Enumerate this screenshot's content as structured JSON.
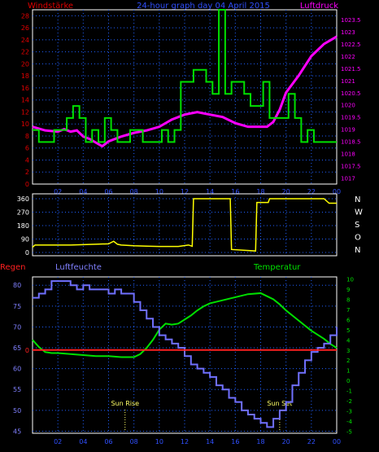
{
  "colors": {
    "background": "#000000",
    "wind": "#00e000",
    "pressure": "#ff00ff",
    "direction": "#ffff00",
    "rain": "#ff2020",
    "humidity": "#7070ff",
    "temperature": "#00e000",
    "frame": "#ffffff",
    "grid": "#2060ff"
  },
  "chart_data": [
    {
      "type": "line",
      "title": "24-hour graph day  04 April 2015",
      "left_axis_label": "Windstärke",
      "right_axis_label": "Luftdruck",
      "x_ticks": [
        "02",
        "04",
        "06",
        "08",
        "10",
        "12",
        "14",
        "16",
        "18",
        "20",
        "22",
        "00"
      ],
      "hours": [
        0,
        24
      ],
      "y_left_ticks": [
        "0",
        "2",
        "4",
        "6",
        "8",
        "10",
        "12",
        "14",
        "16",
        "18",
        "20",
        "22",
        "24",
        "26",
        "28"
      ],
      "y_left_range": [
        0,
        29
      ],
      "y_right_ticks": [
        "1017",
        "1017.5",
        "1018",
        "1018.5",
        "1019",
        "1019.5",
        "1020",
        "1020.5",
        "1021",
        "1021.5",
        "1022",
        "1022.5",
        "1023",
        "1023.5"
      ],
      "y_right_range": [
        1016.75,
        1023.9
      ],
      "grid": true,
      "series": [
        {
          "name": "Windstärke",
          "style": "step",
          "hours": [
            0,
            0.5,
            1.7,
            2.7,
            3.2,
            3.7,
            4.2,
            4.7,
            5.2,
            5.7,
            6.2,
            6.7,
            7.7,
            8.7,
            9.2,
            9.7,
            10.2,
            10.7,
            11.2,
            11.7,
            12.2,
            12.7,
            13.7,
            14.2,
            14.7,
            15.2,
            15.7,
            16.7,
            17.2,
            18.2,
            18.7,
            19.7,
            20.2,
            20.7,
            21.2,
            21.7,
            22.2,
            24
          ],
          "values": [
            9,
            7,
            9,
            11,
            13,
            11,
            7,
            9,
            7,
            11,
            9,
            7,
            9,
            7,
            7,
            7,
            9,
            7,
            9,
            17,
            17,
            19,
            17,
            15,
            29,
            15,
            17,
            15,
            13,
            17,
            11,
            11,
            15,
            11,
            7,
            9,
            7,
            7
          ]
        },
        {
          "name": "Luftdruck",
          "style": "line",
          "hours": [
            0,
            1,
            2,
            2.5,
            3,
            3.5,
            4,
            4.5,
            5,
            5.5,
            6,
            7,
            8,
            9,
            10,
            11,
            12,
            13,
            14,
            15,
            16,
            17,
            18,
            18.5,
            19,
            19.5,
            20,
            21,
            22,
            23,
            24
          ],
          "values": [
            1019.1,
            1018.95,
            1018.9,
            1019.0,
            1018.9,
            1018.95,
            1018.7,
            1018.6,
            1018.45,
            1018.3,
            1018.5,
            1018.7,
            1018.85,
            1018.95,
            1019.1,
            1019.4,
            1019.6,
            1019.7,
            1019.6,
            1019.5,
            1019.25,
            1019.1,
            1019.1,
            1019.1,
            1019.3,
            1019.8,
            1020.5,
            1021.2,
            1022.0,
            1022.5,
            1022.8
          ]
        }
      ]
    },
    {
      "type": "line",
      "y_ticks": [
        "360",
        "270",
        "180",
        "90",
        "0"
      ],
      "y_range": [
        0,
        360
      ],
      "right_labels": [
        "N",
        "W",
        "S",
        "O",
        "N"
      ],
      "x_ticks": [
        "02",
        "04",
        "06",
        "08",
        "10",
        "12",
        "14",
        "16",
        "18",
        "20",
        "22",
        "00"
      ],
      "series": [
        {
          "name": "",
          "style": "line",
          "hours": [
            0,
            0.2,
            1.5,
            3,
            5,
            6,
            6.4,
            6.7,
            7,
            8,
            9,
            10,
            11.5,
            12.3,
            12.6,
            12.7,
            15.6,
            15.7,
            17.6,
            17.7,
            18.6,
            18.7,
            23,
            23.4,
            24
          ],
          "values": [
            35,
            50,
            50,
            50,
            55,
            58,
            75,
            55,
            50,
            45,
            42,
            40,
            40,
            50,
            42,
            360,
            360,
            20,
            10,
            335,
            335,
            360,
            360,
            330,
            330
          ]
        }
      ]
    },
    {
      "type": "line",
      "left_axis_label": "Regen",
      "left2_axis_label": "Luftfeuchte",
      "right_axis_label": "Temperatur",
      "y_left_ticks": [
        "45",
        "50",
        "55",
        "60",
        "65",
        "70",
        "75",
        "80"
      ],
      "y_left_range": [
        44.5,
        82
      ],
      "y_right_ticks": [
        "-5",
        "-4",
        "-3",
        "-2",
        "-1",
        "0",
        "1",
        "2",
        "3",
        "4",
        "5",
        "6",
        "7",
        "8",
        "9",
        "10"
      ],
      "y_right_range": [
        -5.2,
        10.2
      ],
      "x_ticks": [
        "02",
        "04",
        "06",
        "08",
        "10",
        "12",
        "14",
        "16",
        "18",
        "20",
        "22",
        "00"
      ],
      "annotations": [
        "Sun Rise",
        "Sun Set"
      ],
      "annotation_hours": [
        7.3,
        19.5
      ],
      "rain_zero_temperature": 3.0,
      "series": [
        {
          "name": "Regen",
          "style": "line",
          "hours": [
            0,
            24
          ],
          "values": [
            0,
            0
          ]
        },
        {
          "name": "Luftfeuchte",
          "style": "step",
          "hours": [
            0,
            0.5,
            1,
            1.5,
            2,
            3,
            3.5,
            4,
            4.5,
            5.5,
            6,
            6.5,
            7,
            7.5,
            8,
            8.5,
            9,
            9.5,
            10,
            10.5,
            11,
            11.5,
            12,
            12.5,
            13,
            13.5,
            14,
            14.5,
            15,
            15.5,
            16,
            16.5,
            17,
            17.5,
            18,
            18.5,
            19,
            19.5,
            20,
            20.5,
            21,
            21.5,
            22,
            22.5,
            23,
            23.5,
            24
          ],
          "values": [
            77,
            78,
            79,
            81,
            81,
            80,
            79,
            80,
            79,
            79,
            78,
            79,
            78,
            78,
            76,
            74,
            72,
            70,
            68,
            67,
            66,
            65,
            63,
            61,
            60,
            59,
            58,
            56,
            55,
            53,
            52,
            50,
            49,
            48,
            47,
            46,
            48,
            50,
            52,
            56,
            59,
            62,
            64,
            65,
            66,
            68,
            70
          ]
        },
        {
          "name": "Temperatur",
          "style": "line",
          "hours": [
            0,
            0.5,
            1,
            1.5,
            2,
            3,
            4,
            5,
            6,
            7,
            8,
            8.5,
            9,
            9.5,
            10,
            10.5,
            11,
            11.5,
            12,
            12.5,
            13,
            13.5,
            14,
            15,
            16,
            17,
            18,
            18.5,
            19,
            19.5,
            20,
            20.5,
            21,
            21.5,
            22,
            22.5,
            23,
            23.5,
            24
          ],
          "values": [
            4,
            3.3,
            2.8,
            2.7,
            2.7,
            2.6,
            2.5,
            2.4,
            2.4,
            2.3,
            2.3,
            2.6,
            3.2,
            4,
            5,
            5.6,
            5.5,
            5.6,
            6,
            6.4,
            6.9,
            7.3,
            7.6,
            7.9,
            8.2,
            8.5,
            8.6,
            8.3,
            8.0,
            7.5,
            6.9,
            6.4,
            5.9,
            5.4,
            4.9,
            4.5,
            4.1,
            3.6,
            3.2
          ]
        }
      ]
    }
  ]
}
